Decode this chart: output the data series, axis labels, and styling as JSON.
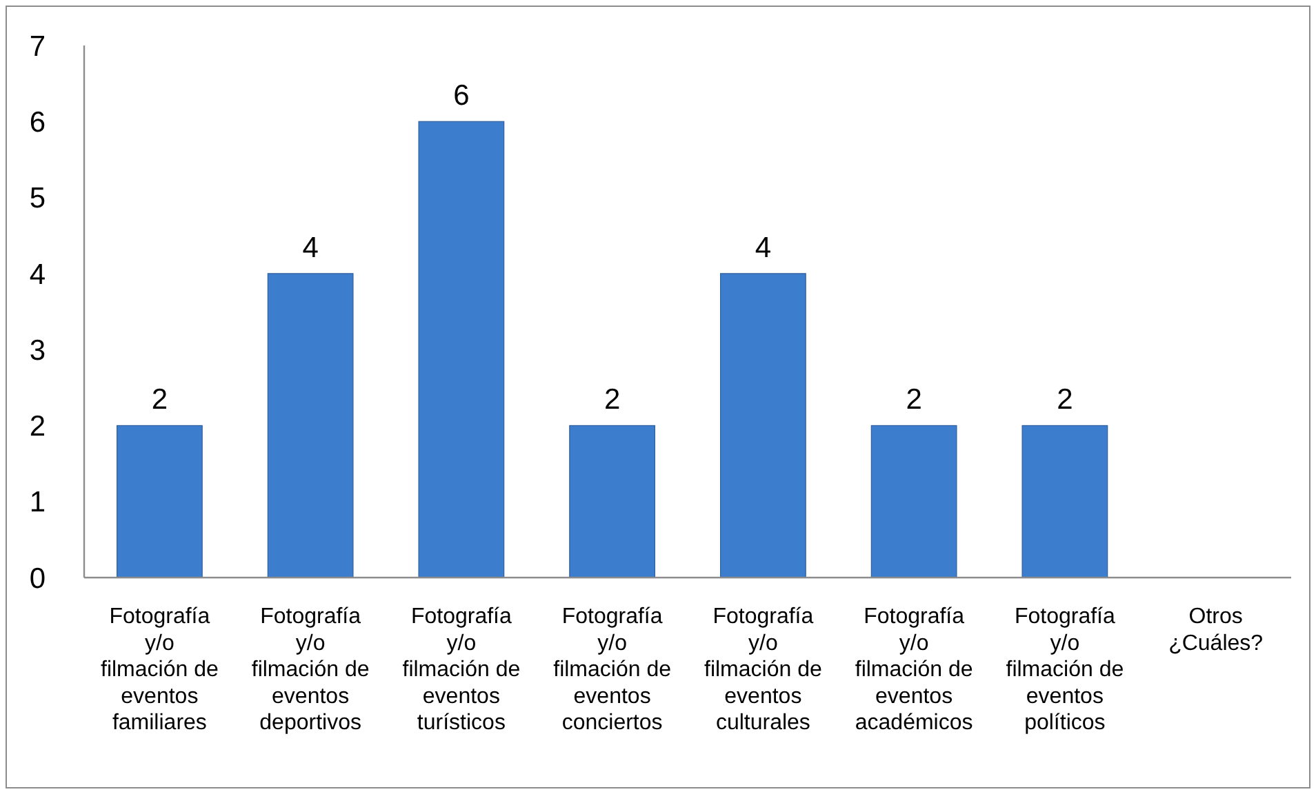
{
  "chart_data": {
    "type": "bar",
    "categories": [
      "Fotografía y/o filmación de eventos familiares",
      "Fotografía y/o filmación de eventos deportivos",
      "Fotografía y/o filmación de eventos turísticos",
      "Fotografía y/o filmación de eventos conciertos",
      "Fotografía y/o filmación de eventos culturales",
      "Fotografía y/o filmación de eventos académicos",
      "Fotografía y/o filmación de eventos políticos",
      "Otros ¿Cuáles?"
    ],
    "values": [
      2,
      4,
      6,
      2,
      4,
      2,
      2,
      null
    ],
    "value_labels": [
      "2",
      "4",
      "6",
      "2",
      "4",
      "2",
      "2",
      null
    ],
    "color": "#3c7dcd",
    "ylim": [
      0,
      7
    ],
    "yticks": [
      0,
      1,
      2,
      3,
      4,
      5,
      6,
      7
    ]
  }
}
